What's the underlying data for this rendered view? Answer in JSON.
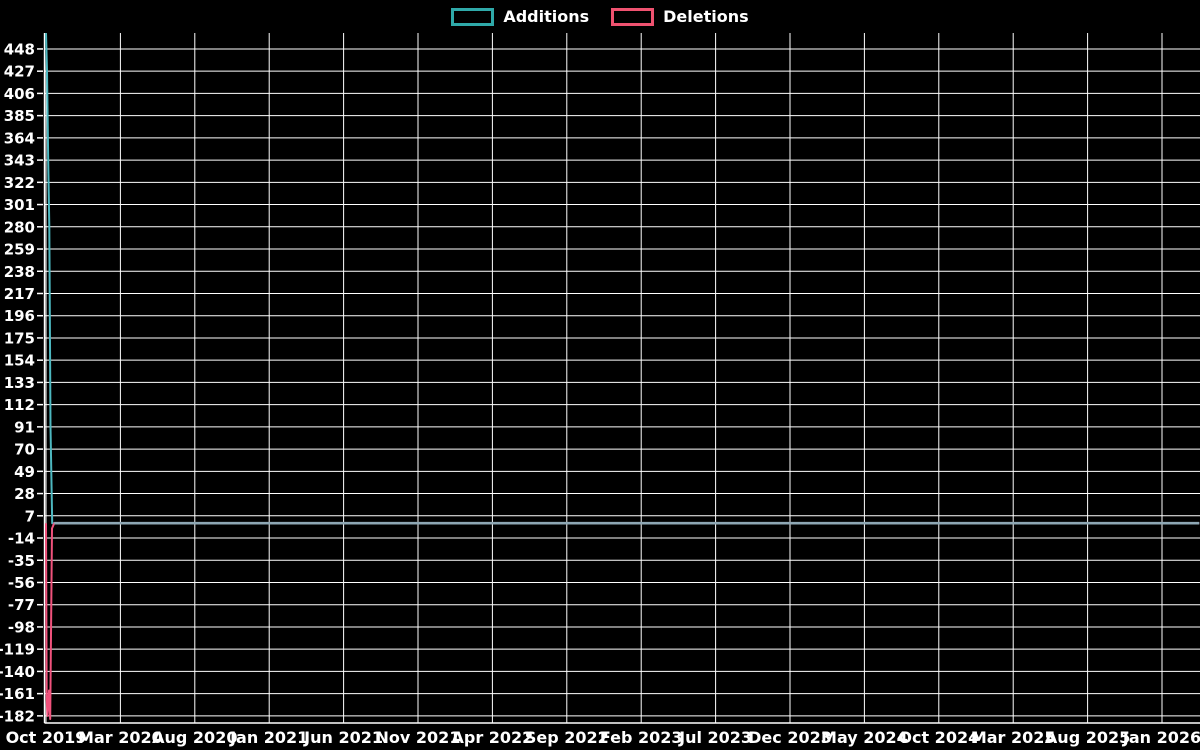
{
  "colors": {
    "background": "#000000",
    "grid": "#ffffff",
    "text": "#ffffff",
    "axis": "#ffffff",
    "additions": "#4db8c0",
    "deletions": "#f0527c",
    "zero_overlap_line": "#8ea7b4"
  },
  "legend": {
    "items": [
      {
        "label": "Additions",
        "color": "#2fa9a9"
      },
      {
        "label": "Deletions",
        "color": "#ef5270"
      }
    ]
  },
  "chart_data": {
    "type": "line",
    "title": "",
    "xlabel": "",
    "ylabel": "",
    "grid": true,
    "legend_position": "top-center",
    "x_tick_labels": [
      "Oct 2019",
      "Mar 2020",
      "Aug 2020",
      "Jan 2021",
      "Jun 2021",
      "Nov 2021",
      "Apr 2022",
      "Sep 2022",
      "Feb 2023",
      "Jul 2023",
      "Dec 2023",
      "May 2024",
      "Oct 2024",
      "Mar 2025",
      "Aug 2025",
      "Jan 2026"
    ],
    "x_tick_interval_months": 5,
    "y_ticks": [
      448,
      427,
      406,
      385,
      364,
      343,
      322,
      301,
      280,
      259,
      238,
      217,
      196,
      175,
      154,
      133,
      112,
      91,
      70,
      49,
      28,
      7,
      -14,
      -35,
      -56,
      -77,
      -98,
      -119,
      -140,
      -161,
      -182
    ],
    "y_tick_step": 21,
    "ylim": [
      -189,
      463
    ],
    "xlim_months": [
      0,
      77.5
    ],
    "series": [
      {
        "name": "Additions",
        "color": "#4db8c0",
        "points_month_value": [
          [
            0,
            463
          ],
          [
            0.07,
            427
          ],
          [
            0.15,
            343
          ],
          [
            0.22,
            280
          ],
          [
            0.3,
            91
          ],
          [
            0.42,
            0
          ],
          [
            77.5,
            0
          ]
        ]
      },
      {
        "name": "Deletions",
        "color": "#f0527c",
        "points_month_value": [
          [
            0,
            0
          ],
          [
            0.05,
            -167
          ],
          [
            0.1,
            -182
          ],
          [
            0.2,
            -158
          ],
          [
            0.28,
            -185
          ],
          [
            0.4,
            -5
          ],
          [
            0.55,
            0
          ],
          [
            77.5,
            0
          ]
        ]
      }
    ],
    "zero_overlap_line": {
      "value": 0,
      "from_month": 0.55,
      "to_month": 77.5,
      "color": "#8ea7b4"
    },
    "notes": "Both series flat at ~0 after initial spike in Oct 2019; overlapping zero lines render as a single blue-gray line."
  }
}
